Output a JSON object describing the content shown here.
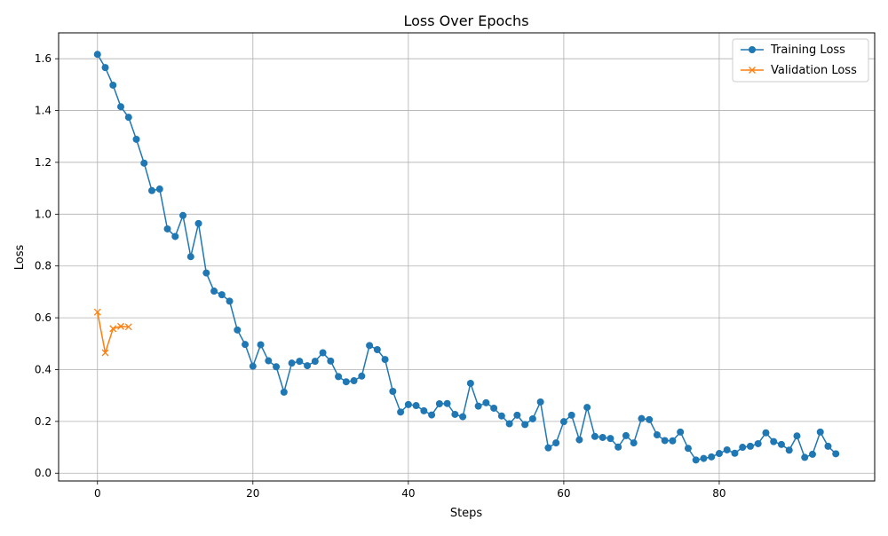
{
  "chart_data": {
    "type": "line",
    "title": "Loss Over Epochs",
    "xlabel": "Steps",
    "ylabel": "Loss",
    "xlim": [
      -5,
      100
    ],
    "ylim": [
      -0.03,
      1.7
    ],
    "xticks": [
      0,
      20,
      40,
      60,
      80
    ],
    "xtick_labels": [
      "0",
      "20",
      "40",
      "60",
      "80"
    ],
    "yticks": [
      0.0,
      0.2,
      0.4,
      0.6,
      0.8,
      1.0,
      1.2,
      1.4,
      1.6
    ],
    "ytick_labels": [
      "0.0",
      "0.2",
      "0.4",
      "0.6",
      "0.8",
      "1.0",
      "1.2",
      "1.4",
      "1.6"
    ],
    "grid": true,
    "legend_position": "top-right",
    "series": [
      {
        "name": "Training Loss",
        "color": "#1f77b4",
        "marker": "circle",
        "x": [
          0,
          1,
          2,
          3,
          4,
          5,
          6,
          7,
          8,
          9,
          10,
          11,
          12,
          13,
          14,
          15,
          16,
          17,
          18,
          19,
          20,
          21,
          22,
          23,
          24,
          25,
          26,
          27,
          28,
          29,
          30,
          31,
          32,
          33,
          34,
          35,
          36,
          37,
          38,
          39,
          40,
          41,
          42,
          43,
          44,
          45,
          46,
          47,
          48,
          49,
          50,
          51,
          52,
          53,
          54,
          55,
          56,
          57,
          58,
          59,
          60,
          61,
          62,
          63,
          64,
          65,
          66,
          67,
          68,
          69,
          70,
          71,
          72,
          73,
          74,
          75,
          76,
          77,
          78,
          79,
          80,
          81,
          82,
          83,
          84,
          85,
          86,
          87,
          88,
          89,
          90,
          91,
          92,
          93,
          94,
          95
        ],
        "values": [
          1.617,
          1.566,
          1.498,
          1.415,
          1.374,
          1.289,
          1.197,
          1.091,
          1.097,
          0.943,
          0.914,
          0.995,
          0.836,
          0.964,
          0.773,
          0.703,
          0.689,
          0.664,
          0.553,
          0.497,
          0.413,
          0.496,
          0.434,
          0.411,
          0.313,
          0.425,
          0.432,
          0.415,
          0.432,
          0.465,
          0.433,
          0.373,
          0.353,
          0.357,
          0.375,
          0.493,
          0.477,
          0.439,
          0.316,
          0.236,
          0.265,
          0.261,
          0.241,
          0.225,
          0.268,
          0.269,
          0.227,
          0.218,
          0.347,
          0.259,
          0.272,
          0.251,
          0.221,
          0.191,
          0.224,
          0.188,
          0.21,
          0.275,
          0.098,
          0.117,
          0.199,
          0.224,
          0.129,
          0.254,
          0.142,
          0.138,
          0.134,
          0.101,
          0.145,
          0.117,
          0.211,
          0.207,
          0.148,
          0.126,
          0.125,
          0.159,
          0.096,
          0.051,
          0.057,
          0.063,
          0.076,
          0.09,
          0.077,
          0.1,
          0.104,
          0.114,
          0.156,
          0.122,
          0.111,
          0.089,
          0.144,
          0.061,
          0.073,
          0.159,
          0.104,
          0.075
        ]
      },
      {
        "name": "Validation Loss",
        "color": "#ff7f0e",
        "marker": "x",
        "x": [
          0,
          1,
          2,
          3,
          4
        ],
        "values": [
          0.622,
          0.465,
          0.558,
          0.567,
          0.565
        ]
      }
    ]
  }
}
